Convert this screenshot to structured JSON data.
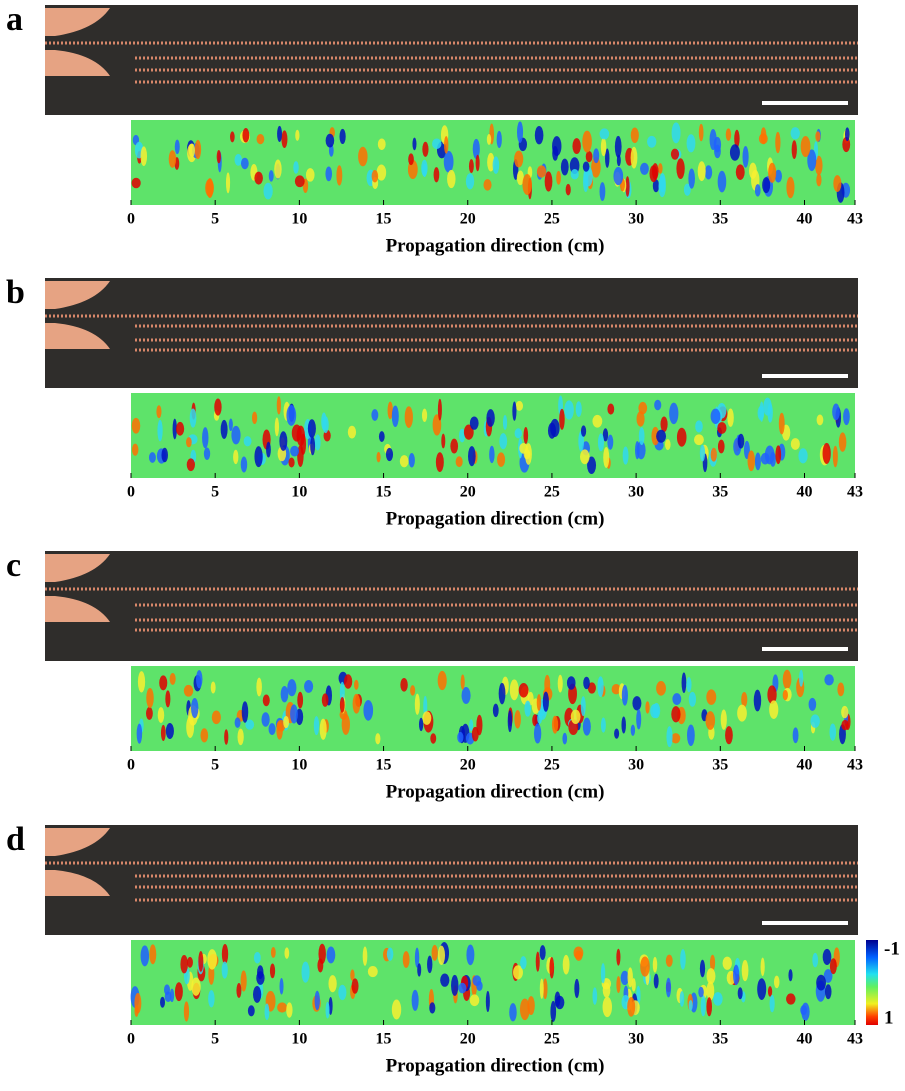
{
  "figure": {
    "panels": [
      {
        "label": "a",
        "xlim": [
          0,
          43
        ],
        "xticks": [
          0,
          5,
          10,
          15,
          20,
          25,
          30,
          35,
          40,
          43
        ],
        "xlabel": "Propagation direction (cm)"
      },
      {
        "label": "b",
        "xlim": [
          0,
          43
        ],
        "xticks": [
          0,
          5,
          10,
          15,
          20,
          25,
          30,
          35,
          40,
          43
        ],
        "xlabel": "Propagation direction (cm)"
      },
      {
        "label": "c",
        "xlim": [
          0,
          43
        ],
        "xticks": [
          0,
          5,
          10,
          15,
          20,
          25,
          30,
          35,
          40,
          43
        ],
        "xlabel": "Propagation direction (cm)"
      },
      {
        "label": "d",
        "xlim": [
          0,
          43
        ],
        "xticks": [
          0,
          5,
          10,
          15,
          20,
          25,
          30,
          35,
          40,
          43
        ],
        "xlabel": "Propagation direction (cm)"
      }
    ],
    "colorbar": {
      "ticks": [
        -1,
        1
      ]
    }
  }
}
